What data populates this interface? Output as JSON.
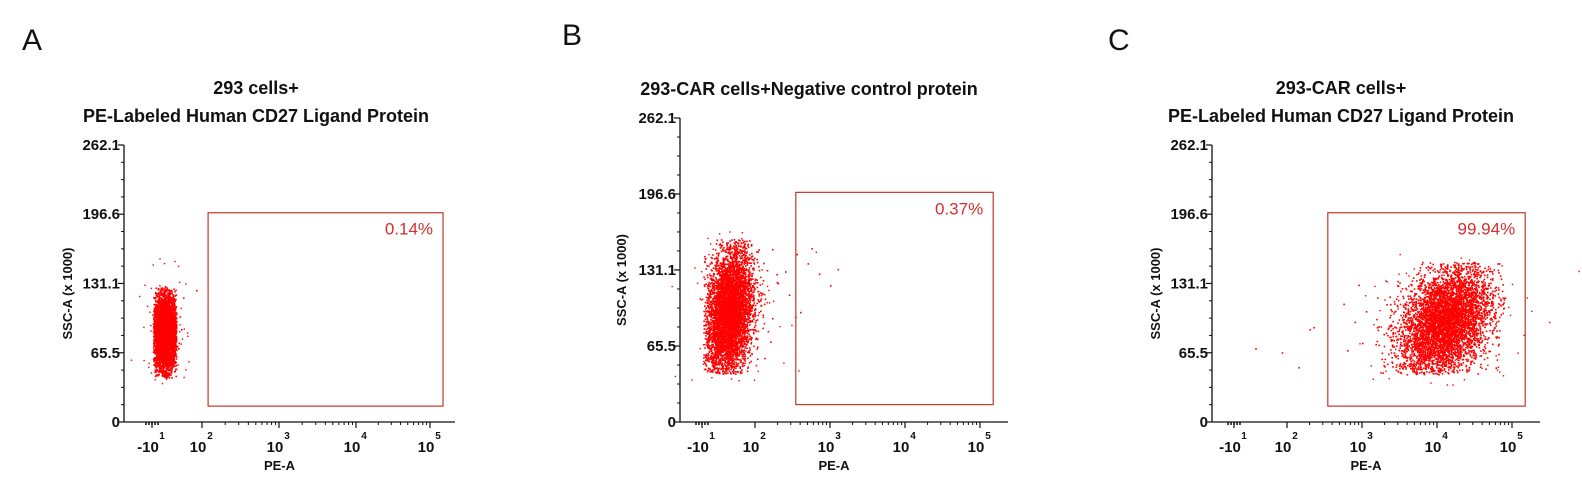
{
  "colors": {
    "dots": "#ff0000",
    "gate": "#c0392b",
    "pct": "#d32f2f",
    "axis": "#111111"
  },
  "chart_data": [
    {
      "type": "scatter",
      "panel": "A",
      "title_lines": [
        "293 cells+",
        "PE-Labeled Human CD27 Ligand Protein"
      ],
      "xlabel": "PE-A",
      "ylabel": "SSC-A (x 1000)",
      "x_scale": "biexponential",
      "x_ticks": [
        {
          "base": "-10",
          "exp": "1",
          "value": -10
        },
        {
          "base": "10",
          "exp": "2",
          "value": 100
        },
        {
          "base": "10",
          "exp": "3",
          "value": 1000
        },
        {
          "base": "10",
          "exp": "4",
          "value": 10000
        },
        {
          "base": "10",
          "exp": "5",
          "value": 100000
        }
      ],
      "y_ticks": [
        "0",
        "65.5",
        "131.1",
        "196.6",
        "262.1"
      ],
      "ylim": [
        0,
        262.1
      ],
      "gate": {
        "x_min": 120,
        "x_max": 150000,
        "y_min": 15,
        "y_max": 198,
        "percent": "0.14%"
      },
      "population": {
        "x_center": 0.25,
        "x_spread": 0.12,
        "y_center": 85,
        "y_spread": 17,
        "y_min": 42,
        "y_max": 128,
        "x_min": 0.02,
        "x_max": 0.48
      },
      "outliers": [
        [
          0.62,
          118
        ],
        [
          0.88,
          125
        ],
        [
          0.55,
          100
        ],
        [
          0.58,
          88
        ],
        [
          0.53,
          75
        ],
        [
          0.52,
          70
        ]
      ]
    },
    {
      "type": "scatter",
      "panel": "B",
      "title_lines": [
        "293-CAR cells+Negative control protein"
      ],
      "xlabel": "PE-A",
      "ylabel": "",
      "x_scale": "biexponential",
      "x_ticks": [
        {
          "base": "-10",
          "exp": "1",
          "value": -10
        },
        {
          "base": "10",
          "exp": "2",
          "value": 100
        },
        {
          "base": "10",
          "exp": "3",
          "value": 1000
        },
        {
          "base": "10",
          "exp": "4",
          "value": 10000
        },
        {
          "base": "10",
          "exp": "5",
          "value": 100000
        }
      ],
      "y_ticks": [
        "0",
        "65.5",
        "131.1",
        "196.6",
        "262.1"
      ],
      "ylim": [
        0,
        262.1
      ],
      "gate": {
        "x_min": 350,
        "x_max": 150000,
        "y_min": 15,
        "y_max": 198,
        "percent": "0.37%"
      },
      "population": {
        "x_center": 0.5,
        "x_spread": 0.22,
        "y_center": 95,
        "y_spread": 27,
        "y_min": 42,
        "y_max": 158,
        "x_min": 0.02,
        "x_max": 1.3,
        "tilt": 18
      },
      "outliers": [
        [
          1.4,
          130
        ],
        [
          1.55,
          145
        ],
        [
          1.7,
          137
        ],
        [
          1.85,
          128
        ],
        [
          2.0,
          118
        ],
        [
          2.1,
          132
        ],
        [
          1.45,
          110
        ],
        [
          1.6,
          95
        ],
        [
          1.3,
          120
        ],
        [
          1.75,
          150
        ]
      ]
    },
    {
      "type": "scatter",
      "panel": "C",
      "title_lines": [
        "293-CAR cells+",
        "PE-Labeled Human CD27 Ligand Protein"
      ],
      "xlabel": "PE-A",
      "ylabel": "SSC-A (x 1000)",
      "x_scale": "biexponential",
      "x_ticks": [
        {
          "base": "-10",
          "exp": "1",
          "value": -10
        },
        {
          "base": "10",
          "exp": "2",
          "value": 100
        },
        {
          "base": "10",
          "exp": "3",
          "value": 1000
        },
        {
          "base": "10",
          "exp": "4",
          "value": 10000
        },
        {
          "base": "10",
          "exp": "5",
          "value": 100000
        }
      ],
      "y_ticks": [
        "0",
        "65.5",
        "131.1",
        "196.6",
        "262.1"
      ],
      "ylim": [
        0,
        262.1
      ],
      "gate": {
        "x_min": 350,
        "x_max": 150000,
        "y_min": 15,
        "y_max": 198,
        "percent": "99.94%"
      },
      "population": {
        "x_center": 3.1,
        "x_spread": 0.3,
        "y_center": 95,
        "y_spread": 25,
        "y_min": 45,
        "y_max": 152,
        "x_min": 2.1,
        "x_max": 3.9,
        "tilt": 18
      },
      "outliers": [
        [
          0.4,
          70
        ],
        [
          0.9,
          66
        ],
        [
          1.15,
          52
        ],
        [
          1.3,
          88
        ],
        [
          1.35,
          90
        ],
        [
          1.75,
          112
        ],
        [
          1.9,
          95
        ],
        [
          2.0,
          75
        ],
        [
          1.8,
          68
        ],
        [
          2.2,
          118
        ],
        [
          2.3,
          60
        ],
        [
          1.95,
          130
        ],
        [
          2.05,
          105
        ]
      ]
    }
  ],
  "panel_letters": [
    "A",
    "B",
    "C"
  ]
}
